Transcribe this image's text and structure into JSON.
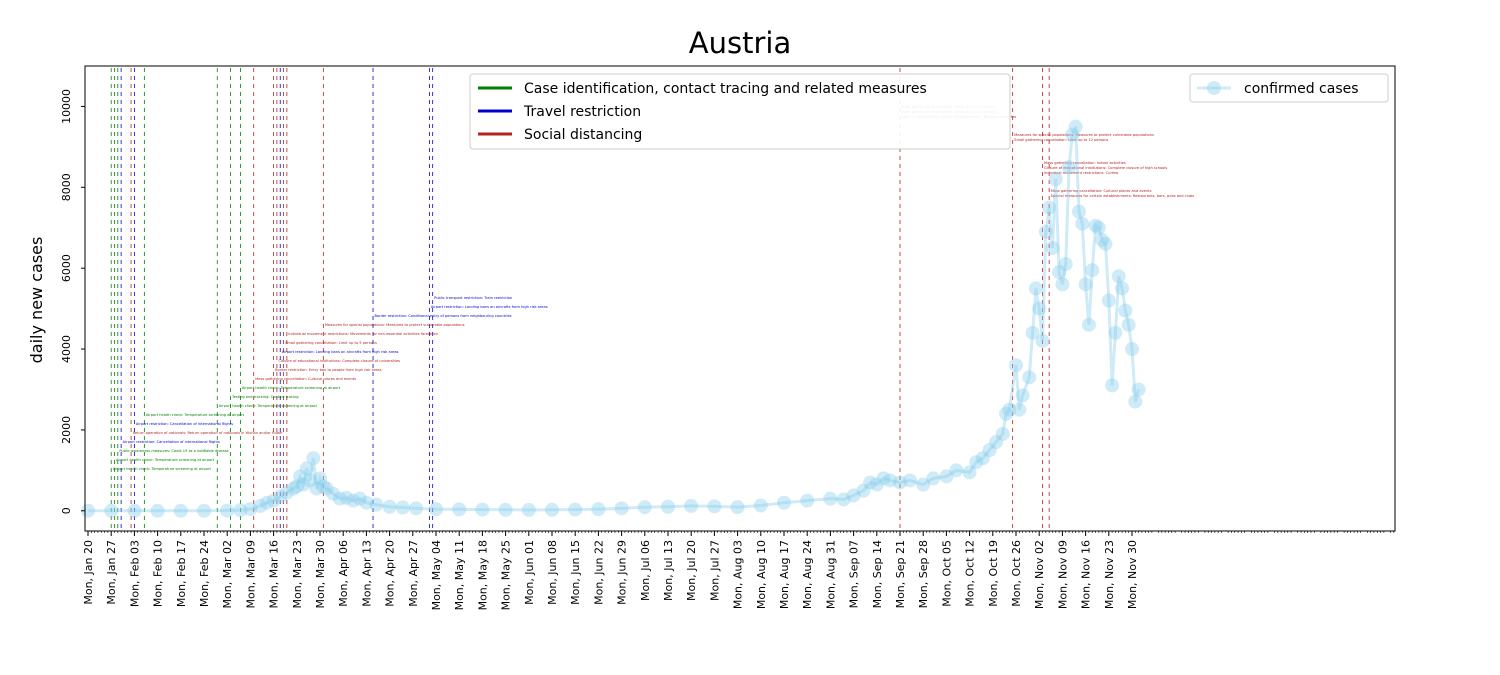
{
  "chart_data": {
    "type": "line",
    "title": "Austria",
    "xlabel": "",
    "ylabel": "daily new cases",
    "x_start": "2020-01-20",
    "x_end": "2020-11-30",
    "ylim": [
      -500,
      11000
    ],
    "yticks": [
      0,
      2000,
      4000,
      6000,
      8000,
      10000
    ],
    "xtick_labels": [
      "Mon, Jan 20",
      "Mon, Jan 27",
      "Mon, Feb 03",
      "Mon, Feb 10",
      "Mon, Feb 17",
      "Mon, Feb 24",
      "Mon, Mar 02",
      "Mon, Mar 09",
      "Mon, Mar 16",
      "Mon, Mar 23",
      "Mon, Mar 30",
      "Mon, Apr 06",
      "Mon, Apr 13",
      "Mon, Apr 20",
      "Mon, Apr 27",
      "Mon, May 04",
      "Mon, May 11",
      "Mon, May 18",
      "Mon, May 25",
      "Mon, Jun 01",
      "Mon, Jun 08",
      "Mon, Jun 15",
      "Mon, Jun 22",
      "Mon, Jun 29",
      "Mon, Jul 06",
      "Mon, Jul 13",
      "Mon, Jul 20",
      "Mon, Jul 27",
      "Mon, Aug 03",
      "Mon, Aug 10",
      "Mon, Aug 17",
      "Mon, Aug 24",
      "Mon, Aug 31",
      "Mon, Sep 07",
      "Mon, Sep 14",
      "Mon, Sep 21",
      "Mon, Sep 28",
      "Mon, Oct 05",
      "Mon, Oct 12",
      "Mon, Oct 19",
      "Mon, Oct 26",
      "Mon, Nov 02",
      "Mon, Nov 09",
      "Mon, Nov 16",
      "Mon, Nov 23",
      "Mon, Nov 30"
    ],
    "grid": false,
    "legend_placement": "top-center",
    "policy_legend": [
      {
        "name": "Case identification, contact tracing and related measures",
        "color": "#008000"
      },
      {
        "name": "Travel restriction",
        "color": "#0000cd"
      },
      {
        "name": "Social distancing",
        "color": "#b22222"
      }
    ],
    "series": [
      {
        "name": "confirmed cases",
        "color": "#87ceeb",
        "legend_placement": "top-right",
        "points": [
          [
            "2020-01-20",
            0
          ],
          [
            "2020-01-27",
            0
          ],
          [
            "2020-02-03",
            0
          ],
          [
            "2020-02-10",
            0
          ],
          [
            "2020-02-17",
            0
          ],
          [
            "2020-02-24",
            0
          ],
          [
            "2020-03-02",
            5
          ],
          [
            "2020-03-06",
            15
          ],
          [
            "2020-03-09",
            40
          ],
          [
            "2020-03-12",
            120
          ],
          [
            "2020-03-14",
            200
          ],
          [
            "2020-03-16",
            250
          ],
          [
            "2020-03-18",
            350
          ],
          [
            "2020-03-20",
            450
          ],
          [
            "2020-03-22",
            550
          ],
          [
            "2020-03-23",
            600
          ],
          [
            "2020-03-24",
            850
          ],
          [
            "2020-03-25",
            650
          ],
          [
            "2020-03-26",
            1050
          ],
          [
            "2020-03-27",
            750
          ],
          [
            "2020-03-28",
            1300
          ],
          [
            "2020-03-29",
            550
          ],
          [
            "2020-03-30",
            800
          ],
          [
            "2020-03-31",
            600
          ],
          [
            "2020-04-01",
            550
          ],
          [
            "2020-04-03",
            420
          ],
          [
            "2020-04-05",
            300
          ],
          [
            "2020-04-07",
            320
          ],
          [
            "2020-04-09",
            250
          ],
          [
            "2020-04-11",
            300
          ],
          [
            "2020-04-13",
            200
          ],
          [
            "2020-04-16",
            150
          ],
          [
            "2020-04-20",
            100
          ],
          [
            "2020-04-24",
            80
          ],
          [
            "2020-04-28",
            60
          ],
          [
            "2020-05-04",
            40
          ],
          [
            "2020-05-11",
            35
          ],
          [
            "2020-05-18",
            30
          ],
          [
            "2020-05-25",
            25
          ],
          [
            "2020-06-01",
            20
          ],
          [
            "2020-06-08",
            25
          ],
          [
            "2020-06-15",
            30
          ],
          [
            "2020-06-22",
            40
          ],
          [
            "2020-06-29",
            60
          ],
          [
            "2020-07-06",
            90
          ],
          [
            "2020-07-13",
            100
          ],
          [
            "2020-07-20",
            120
          ],
          [
            "2020-07-27",
            110
          ],
          [
            "2020-08-03",
            90
          ],
          [
            "2020-08-10",
            130
          ],
          [
            "2020-08-17",
            200
          ],
          [
            "2020-08-24",
            250
          ],
          [
            "2020-08-31",
            300
          ],
          [
            "2020-09-04",
            280
          ],
          [
            "2020-09-07",
            380
          ],
          [
            "2020-09-10",
            500
          ],
          [
            "2020-09-12",
            700
          ],
          [
            "2020-09-14",
            650
          ],
          [
            "2020-09-16",
            800
          ],
          [
            "2020-09-18",
            750
          ],
          [
            "2020-09-21",
            700
          ],
          [
            "2020-09-24",
            750
          ],
          [
            "2020-09-28",
            650
          ],
          [
            "2020-10-01",
            800
          ],
          [
            "2020-10-05",
            850
          ],
          [
            "2020-10-08",
            1000
          ],
          [
            "2020-10-12",
            950
          ],
          [
            "2020-10-14",
            1200
          ],
          [
            "2020-10-16",
            1300
          ],
          [
            "2020-10-18",
            1500
          ],
          [
            "2020-10-20",
            1700
          ],
          [
            "2020-10-22",
            1900
          ],
          [
            "2020-10-23",
            2400
          ],
          [
            "2020-10-24",
            2500
          ],
          [
            "2020-10-26",
            3600
          ],
          [
            "2020-10-27",
            2500
          ],
          [
            "2020-10-28",
            2850
          ],
          [
            "2020-10-30",
            3300
          ],
          [
            "2020-10-31",
            4400
          ],
          [
            "2020-11-01",
            5500
          ],
          [
            "2020-11-02",
            5000
          ],
          [
            "2020-11-03",
            4200
          ],
          [
            "2020-11-04",
            6900
          ],
          [
            "2020-11-05",
            7500
          ],
          [
            "2020-11-06",
            6500
          ],
          [
            "2020-11-07",
            8200
          ],
          [
            "2020-11-08",
            5900
          ],
          [
            "2020-11-09",
            5600
          ],
          [
            "2020-11-10",
            6100
          ],
          [
            "2020-11-11",
            8500
          ],
          [
            "2020-11-12",
            9300
          ],
          [
            "2020-11-13",
            9500
          ],
          [
            "2020-11-14",
            7400
          ],
          [
            "2020-11-15",
            7100
          ],
          [
            "2020-11-16",
            5600
          ],
          [
            "2020-11-17",
            4600
          ],
          [
            "2020-11-18",
            5950
          ],
          [
            "2020-11-19",
            7050
          ],
          [
            "2020-11-20",
            7000
          ],
          [
            "2020-11-21",
            6700
          ],
          [
            "2020-11-22",
            6600
          ],
          [
            "2020-11-23",
            5200
          ],
          [
            "2020-11-24",
            3100
          ],
          [
            "2020-11-25",
            4400
          ],
          [
            "2020-11-26",
            5800
          ],
          [
            "2020-11-27",
            5500
          ],
          [
            "2020-11-28",
            4950
          ],
          [
            "2020-11-29",
            4600
          ],
          [
            "2020-11-30",
            4000
          ],
          [
            "2020-12-01",
            2700
          ],
          [
            "2020-12-02",
            3000
          ]
        ]
      }
    ],
    "policy_events": [
      {
        "date": "2020-01-27",
        "category": "case",
        "labels": [
          "Airport health check: Temperature screening at airport"
        ]
      },
      {
        "date": "2020-01-28",
        "category": "case",
        "labels": [
          "Airport health check: Temperature screening at airport"
        ]
      },
      {
        "date": "2020-01-29",
        "category": "case",
        "labels": [
          "Public awareness measures: Covid-19 as a notifiable disease"
        ]
      },
      {
        "date": "2020-01-30",
        "category": "travel",
        "labels": [
          "Airport restriction: Cancellation of international flights"
        ]
      },
      {
        "date": "2020-02-02",
        "category": "social",
        "labels": [
          "Return operation of nationals: Return operation of nationals in Wuhan and/or Hubei"
        ]
      },
      {
        "date": "2020-02-03",
        "category": "travel",
        "labels": [
          "Airport restriction: Cancellation of international flights"
        ]
      },
      {
        "date": "2020-02-06",
        "category": "case",
        "labels": [
          "Airport health check: Temperature screening at airport"
        ]
      },
      {
        "date": "2020-02-28",
        "category": "case",
        "labels": [
          "Airport health check: Temperature screening at airport"
        ]
      },
      {
        "date": "2020-03-03",
        "category": "case",
        "labels": [
          "Testing and tracking: Contact tracing"
        ]
      },
      {
        "date": "2020-03-06",
        "category": "case",
        "labels": [
          "Airport health check: Temperature screening at airport"
        ]
      },
      {
        "date": "2020-03-10",
        "category": "social",
        "labels": [
          "Mass gathering cancellation: Cultural places and events"
        ]
      },
      {
        "date": "2020-03-16",
        "category": "social",
        "labels": [
          "Border restriction: Entry ban to people from high risk areas"
        ]
      },
      {
        "date": "2020-03-17",
        "category": "social",
        "labels": [
          "Closure of educational institutions: Complete closure of universities"
        ]
      },
      {
        "date": "2020-03-18",
        "category": "travel",
        "labels": [
          "Airport restriction: Landing bans on aircrafts from high risk areas"
        ]
      },
      {
        "date": "2020-03-19",
        "category": "social",
        "labels": [
          "Small gathering cancellation: Limit up to 5 persons"
        ]
      },
      {
        "date": "2020-03-20",
        "category": "social",
        "labels": [
          "Individual movement restrictions: Movements for non-essential activities forbidden"
        ]
      },
      {
        "date": "2020-03-31",
        "category": "social",
        "labels": [
          "Measures for special populations: Measures to protect vulnerable populations"
        ]
      },
      {
        "date": "2020-04-15",
        "category": "travel",
        "labels": [
          "Border restriction: Conditional entry of persons from neighbouring countries"
        ]
      },
      {
        "date": "2020-05-02",
        "category": "travel",
        "labels": [
          "Airport restriction: Landing bans on aircrafts from high risk areas"
        ]
      },
      {
        "date": "2020-05-03",
        "category": "travel",
        "labels": [
          "Public transport restriction: Train restriction"
        ]
      },
      {
        "date": "2020-09-21",
        "category": "social",
        "labels": [
          "Mass gathering cancellation: Limit up to 50 persons",
          "Mass gathering cancellation: Limit up to 100 persons",
          "Special measures for certain establishments: Restaurants/cafes"
        ]
      },
      {
        "date": "2020-10-25",
        "category": "social",
        "labels": [
          "Measures for special populations: Measures to protect vulnerable populations",
          "Small gathering cancellation: Limit up to 12 persons"
        ]
      },
      {
        "date": "2020-11-03",
        "category": "social",
        "labels": [
          "Mass gathering cancellation: Indoor activities",
          "Closure of educational institutions: Complete closure of high schools",
          "Individual movement restrictions: Curfew"
        ]
      },
      {
        "date": "2020-11-05",
        "category": "social",
        "labels": [
          "Mass gathering cancellation: Cultural places and events",
          "Special measures for certain establishments: Restaurants, bars, pubs and clubs"
        ]
      }
    ]
  }
}
